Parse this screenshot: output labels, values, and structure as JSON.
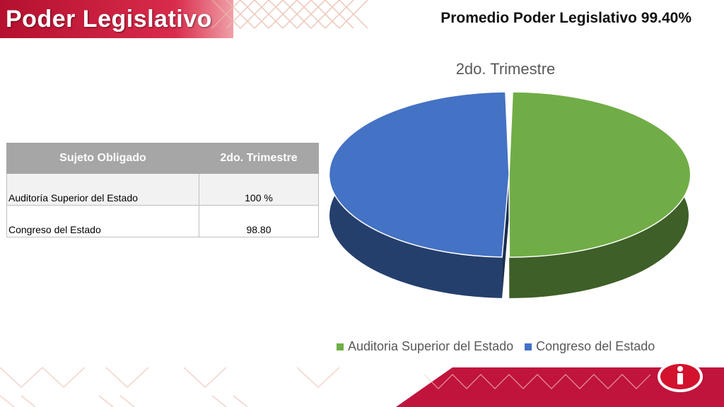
{
  "header": {
    "title": "Poder Legislativo",
    "subtitle": "Promedio Poder Legislativo 99.40%"
  },
  "table": {
    "headers": [
      "Sujeto Obligado",
      "2do. Trimestre"
    ],
    "rows": [
      {
        "name": "Auditoría Superior del Estado",
        "value": "100 %"
      },
      {
        "name": "Congreso del Estado",
        "value": "98.80"
      }
    ]
  },
  "chart_data": {
    "type": "pie",
    "title": "2do. Trimestre",
    "categories": [
      "Auditoria Superior del Estado",
      "Congreso del Estado"
    ],
    "values": [
      100,
      98.8
    ],
    "colors": [
      "#70ad47",
      "#4472c4"
    ],
    "legend_position": "bottom",
    "style": "3d"
  },
  "colors": {
    "accent_red": "#c0143c",
    "header_gray": "#a6a6a6"
  },
  "icons": [
    "info-icon"
  ]
}
